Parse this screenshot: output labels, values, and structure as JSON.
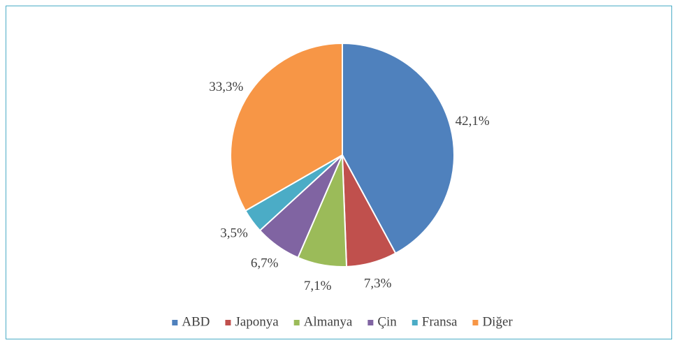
{
  "chart_data": {
    "type": "pie",
    "categories": [
      "ABD",
      "Japonya",
      "Almanya",
      "Çin",
      "Fransa",
      "Diğer"
    ],
    "values": [
      42.1,
      7.3,
      7.1,
      6.7,
      3.5,
      33.3
    ],
    "value_labels": [
      "42,1%",
      "7,3%",
      "7,1%",
      "6,7%",
      "3,5%",
      "33,3%"
    ],
    "colors": [
      "#4f81bd",
      "#c0504d",
      "#9bbb59",
      "#8064a2",
      "#4bacc6",
      "#f79646"
    ],
    "legend": "bottom"
  }
}
